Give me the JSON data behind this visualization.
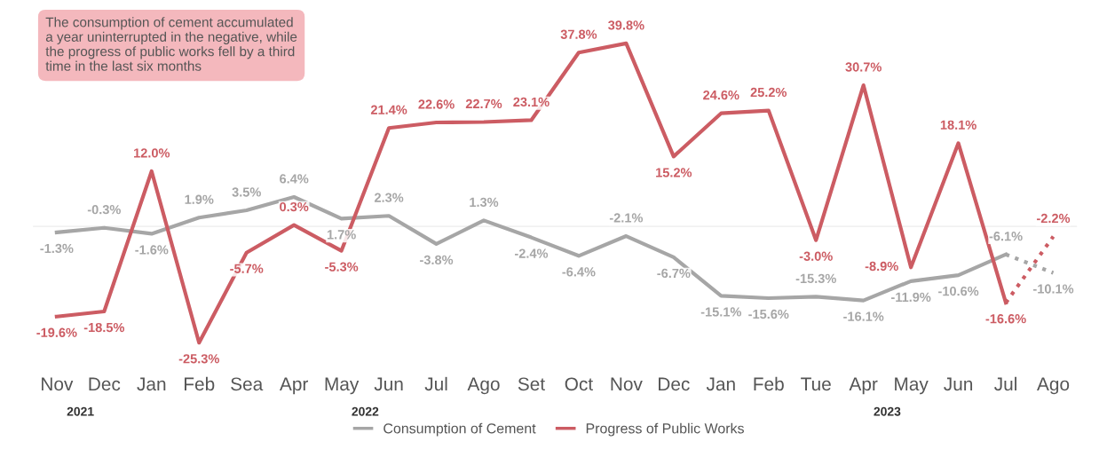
{
  "chart_data": {
    "type": "line",
    "categories": [
      "Nov",
      "Dec",
      "Jan",
      "Feb",
      "Sea",
      "Apr",
      "May",
      "Jun",
      "Jul",
      "Ago",
      "Set",
      "Oct",
      "Nov",
      "Dec",
      "Jan",
      "Feb",
      "Tue",
      "Apr",
      "May",
      "Jun",
      "Jul",
      "Ago"
    ],
    "series": [
      {
        "name": "Consumption of Cement",
        "color": "#a6a6a6",
        "line_style": "solid",
        "values": [
          -1.3,
          -0.3,
          -1.6,
          1.9,
          3.5,
          6.4,
          1.7,
          2.3,
          -3.8,
          1.3,
          -2.4,
          -6.4,
          -2.1,
          -6.7,
          -15.1,
          -15.6,
          -15.3,
          -16.1,
          -11.9,
          -10.6,
          -6.1,
          null
        ],
        "value_labels": [
          "-1.3%",
          "-0.3%",
          "-1.6%",
          "1.9%",
          "3.5%",
          "6.4%",
          "1.7%",
          "2.3%",
          "-3.8%",
          "1.3%",
          "-2.4%",
          "-6.4%",
          "-2.1%",
          "-6.7%",
          "-15.1%",
          "-15.6%",
          "-15.3%",
          "-16.1%",
          "-11.9%",
          "-10.6%",
          "-6.1%",
          null
        ]
      },
      {
        "name": "Progress of Public Works",
        "color": "#cc5c63",
        "line_style": "solid",
        "values": [
          -19.6,
          -18.5,
          12.0,
          -25.3,
          -5.7,
          0.3,
          -5.3,
          21.4,
          22.6,
          22.7,
          23.1,
          37.8,
          39.8,
          15.2,
          24.6,
          25.2,
          -3.0,
          30.7,
          -8.9,
          18.1,
          -16.6,
          null
        ],
        "value_labels": [
          "-19.6%",
          "-18.5%",
          "12.0%",
          "-25.3%",
          "-5.7%",
          "0.3%",
          "-5.3%",
          "21.4%",
          "22.6%",
          "22.7%",
          "23.1%",
          "37.8%",
          "39.8%",
          "15.2%",
          "24.6%",
          "25.2%",
          "-3.0%",
          "30.7%",
          "-8.9%",
          "18.1%",
          "-16.6%",
          null
        ]
      },
      {
        "color": "#a6a6a6",
        "line_style": "dotted",
        "values": [
          null,
          null,
          null,
          null,
          null,
          null,
          null,
          null,
          null,
          null,
          null,
          null,
          null,
          null,
          null,
          null,
          null,
          null,
          null,
          null,
          -6.1,
          -10.1
        ],
        "value_labels": [
          null,
          null,
          null,
          null,
          null,
          null,
          null,
          null,
          null,
          null,
          null,
          null,
          null,
          null,
          null,
          null,
          null,
          null,
          null,
          null,
          null,
          "-10.1%"
        ]
      },
      {
        "color": "#cc5c63",
        "line_style": "dotted",
        "values": [
          null,
          null,
          null,
          null,
          null,
          null,
          null,
          null,
          null,
          null,
          null,
          null,
          null,
          null,
          null,
          null,
          null,
          null,
          null,
          null,
          -16.6,
          -2.2
        ],
        "value_labels": [
          null,
          null,
          null,
          null,
          null,
          null,
          null,
          null,
          null,
          null,
          null,
          null,
          null,
          null,
          null,
          null,
          null,
          null,
          null,
          null,
          null,
          "-2.2%"
        ]
      }
    ],
    "ref_lines": [
      {
        "axis": "y",
        "value": 0,
        "color": "#ececec"
      }
    ],
    "tick_labels": "x",
    "legend": "bottom",
    "grid": false,
    "annotations": [
      "The consumption of cement accumulated\na year uninterrupted in the negative, while\nthe progress of public works fell by a third\ntime in the last six months",
      "2021",
      "2022",
      "2023"
    ]
  }
}
